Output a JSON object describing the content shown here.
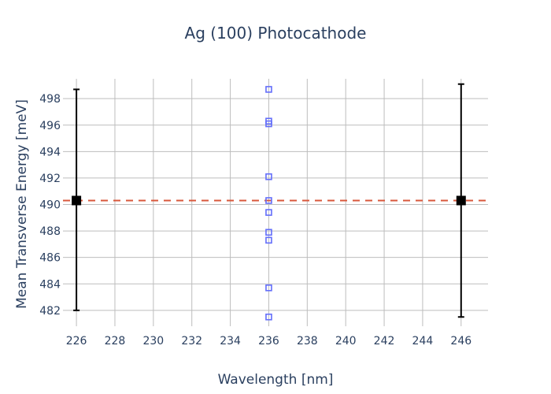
{
  "chart_data": {
    "type": "scatter",
    "title": "Ag (100) Photocathode",
    "xlabel": "Wavelength [nm]",
    "ylabel": "Mean Transverse Energy [meV]",
    "xlim": [
      225.3,
      247.4
    ],
    "ylim": [
      480.8,
      499.5
    ],
    "x_ticks": [
      226,
      228,
      230,
      232,
      234,
      236,
      238,
      240,
      242,
      244,
      246
    ],
    "y_ticks": [
      482,
      484,
      486,
      488,
      490,
      492,
      494,
      496,
      498
    ],
    "grid": true,
    "legend": "none",
    "series": [
      {
        "marker": "open-square",
        "color": "#636efa",
        "points": [
          {
            "x": 236,
            "y": 498.7
          },
          {
            "x": 236,
            "y": 496.3
          },
          {
            "x": 236,
            "y": 496.1
          },
          {
            "x": 236,
            "y": 492.1
          },
          {
            "x": 236,
            "y": 490.3
          },
          {
            "x": 236,
            "y": 489.4
          },
          {
            "x": 236,
            "y": 487.9
          },
          {
            "x": 236,
            "y": 487.3
          },
          {
            "x": 236,
            "y": 483.7
          },
          {
            "x": 236,
            "y": 481.5
          }
        ]
      },
      {
        "marker": "filled-square",
        "color": "#000000",
        "points": [
          {
            "x": 226,
            "y": 490.3,
            "error_low": 482.0,
            "error_high": 498.7
          },
          {
            "x": 246,
            "y": 490.3,
            "error_low": 481.5,
            "error_high": 499.1
          }
        ]
      }
    ],
    "reference_line": {
      "y": 490.3,
      "style": "dashed",
      "color": "#d9573b"
    }
  }
}
